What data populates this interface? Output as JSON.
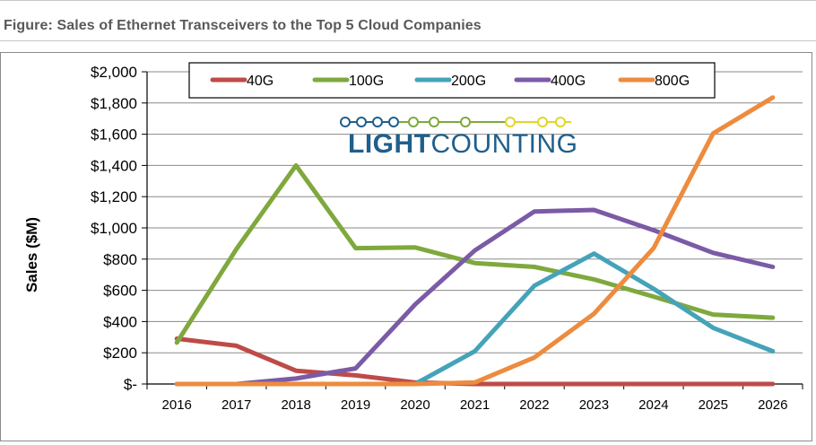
{
  "figure": {
    "caption": "Figure: Sales of Ethernet Transceivers to the Top 5 Cloud Companies"
  },
  "logo": {
    "bold_part": "LIGHT",
    "light_part": "COUNTING"
  },
  "colors": {
    "40G": "#be4b48",
    "100G": "#7fa83d",
    "200G": "#45a3b9",
    "400G": "#7b5aa6",
    "800G": "#ed8b3e",
    "logo_line_left": "#1f5f8b",
    "logo_line_mid": "#7fa83d",
    "logo_line_right": "#e1d62a"
  },
  "chart_data": {
    "type": "line",
    "title": "Sales of Ethernet Transceivers to the Top 5 Cloud Companies",
    "xlabel": "",
    "ylabel": "Sales ($M)",
    "ylim": [
      0,
      2000
    ],
    "grid": true,
    "legend_position": "top",
    "categories": [
      "2016",
      "2017",
      "2018",
      "2019",
      "2020",
      "2021",
      "2022",
      "2023",
      "2024",
      "2025",
      "2026"
    ],
    "y_ticks": [
      0,
      200,
      400,
      600,
      800,
      1000,
      1200,
      1400,
      1600,
      1800,
      2000
    ],
    "y_tick_labels": [
      "$-",
      "$200",
      "$400",
      "$600",
      "$800",
      "$1,000",
      "$1,200",
      "$1,400",
      "$1,600",
      "$1,800",
      "$2,000"
    ],
    "series": [
      {
        "name": "40G",
        "values": [
          290,
          245,
          85,
          55,
          10,
          0,
          0,
          0,
          0,
          0,
          0
        ]
      },
      {
        "name": "100G",
        "values": [
          265,
          865,
          1400,
          870,
          875,
          775,
          750,
          670,
          560,
          445,
          425
        ]
      },
      {
        "name": "200G",
        "values": [
          0,
          0,
          0,
          0,
          0,
          210,
          630,
          835,
          610,
          360,
          210
        ]
      },
      {
        "name": "400G",
        "values": [
          0,
          0,
          35,
          100,
          510,
          855,
          1105,
          1115,
          985,
          840,
          750
        ]
      },
      {
        "name": "800G",
        "values": [
          0,
          0,
          0,
          0,
          0,
          10,
          170,
          450,
          870,
          1605,
          1835
        ]
      }
    ]
  }
}
